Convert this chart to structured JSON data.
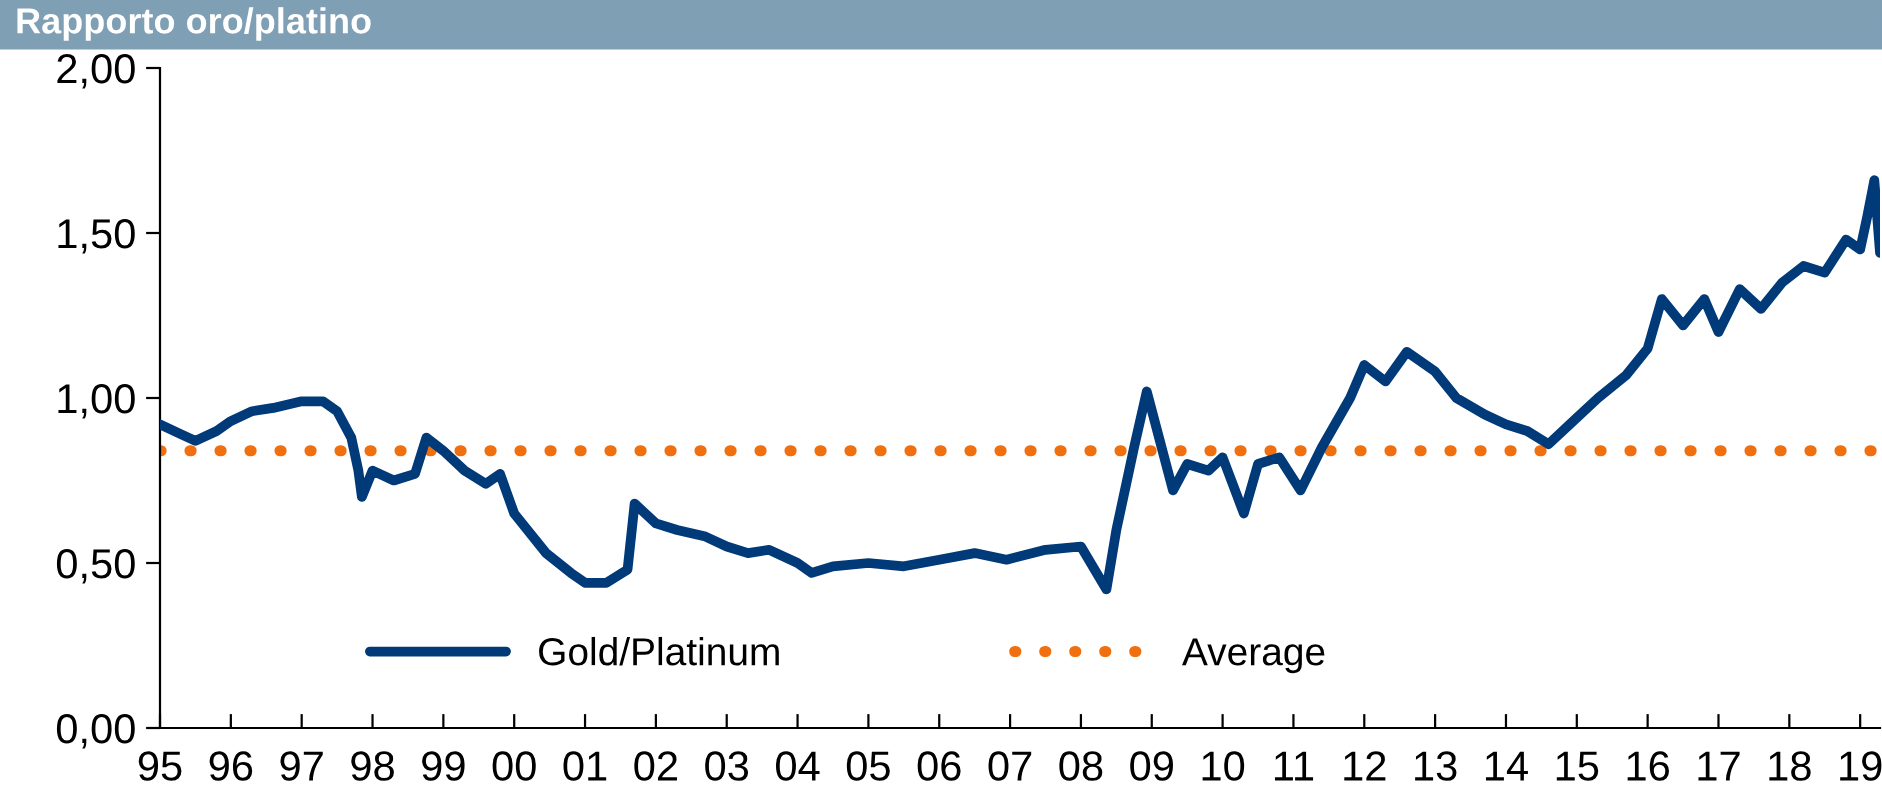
{
  "chart_data": {
    "type": "line",
    "title": "Rapporto oro/platino",
    "x": [
      1995.0,
      1995.3,
      1995.5,
      1995.8,
      1996.0,
      1996.3,
      1996.6,
      1997.0,
      1997.3,
      1997.5,
      1997.7,
      1997.8,
      1997.85,
      1998.0,
      1998.3,
      1998.6,
      1998.76,
      1999.0,
      1999.3,
      1999.6,
      1999.8,
      2000.0,
      2000.45,
      2000.8,
      2001.0,
      2001.3,
      2001.6,
      2001.7,
      2002.0,
      2002.3,
      2002.7,
      2003.0,
      2003.3,
      2003.6,
      2004.0,
      2004.2,
      2004.5,
      2005.0,
      2005.5,
      2006.0,
      2006.5,
      2006.95,
      2007.5,
      2008.0,
      2008.36,
      2008.5,
      2008.75,
      2008.93,
      2009.3,
      2009.5,
      2009.8,
      2010.0,
      2010.3,
      2010.5,
      2010.8,
      2011.1,
      2011.4,
      2011.8,
      2012.0,
      2012.3,
      2012.6,
      2013.0,
      2013.3,
      2013.7,
      2014.0,
      2014.3,
      2014.6,
      2014.9,
      2015.3,
      2015.7,
      2016.0,
      2016.2,
      2016.5,
      2016.8,
      2017.0,
      2017.3,
      2017.6,
      2017.9,
      2018.2,
      2018.5,
      2018.8,
      2019.0,
      2019.1,
      2019.2,
      2019.28
    ],
    "series": [
      {
        "name": "Gold/Platinum",
        "color": "#003a78",
        "values": [
          0.92,
          0.89,
          0.87,
          0.9,
          0.93,
          0.96,
          0.97,
          0.99,
          0.99,
          0.96,
          0.88,
          0.78,
          0.7,
          0.78,
          0.75,
          0.77,
          0.88,
          0.84,
          0.78,
          0.74,
          0.77,
          0.65,
          0.53,
          0.47,
          0.44,
          0.44,
          0.48,
          0.68,
          0.62,
          0.6,
          0.58,
          0.55,
          0.53,
          0.54,
          0.5,
          0.47,
          0.49,
          0.5,
          0.49,
          0.51,
          0.53,
          0.51,
          0.54,
          0.55,
          0.42,
          0.6,
          0.85,
          1.02,
          0.72,
          0.8,
          0.78,
          0.82,
          0.65,
          0.8,
          0.82,
          0.72,
          0.85,
          1.0,
          1.1,
          1.05,
          1.14,
          1.08,
          1.0,
          0.95,
          0.92,
          0.9,
          0.86,
          0.92,
          1.0,
          1.07,
          1.15,
          1.3,
          1.22,
          1.3,
          1.2,
          1.33,
          1.27,
          1.35,
          1.4,
          1.38,
          1.48,
          1.45,
          1.55,
          1.66,
          1.44
        ]
      }
    ],
    "ref_lines": [
      {
        "axis": "y",
        "value": 0.84,
        "label": "Average",
        "color": "#f07010",
        "line_style": "dotted"
      }
    ],
    "xlim": [
      1995,
      2019.28
    ],
    "xticks": [
      {
        "value": 1995,
        "label": "95"
      },
      {
        "value": 1996,
        "label": "96"
      },
      {
        "value": 1997,
        "label": "97"
      },
      {
        "value": 1998,
        "label": "98"
      },
      {
        "value": 1999,
        "label": "99"
      },
      {
        "value": 2000,
        "label": "00"
      },
      {
        "value": 2001,
        "label": "01"
      },
      {
        "value": 2002,
        "label": "02"
      },
      {
        "value": 2003,
        "label": "03"
      },
      {
        "value": 2004,
        "label": "04"
      },
      {
        "value": 2005,
        "label": "05"
      },
      {
        "value": 2006,
        "label": "06"
      },
      {
        "value": 2007,
        "label": "07"
      },
      {
        "value": 2008,
        "label": "08"
      },
      {
        "value": 2009,
        "label": "09"
      },
      {
        "value": 2010,
        "label": "10"
      },
      {
        "value": 2011,
        "label": "11"
      },
      {
        "value": 2012,
        "label": "12"
      },
      {
        "value": 2013,
        "label": "13"
      },
      {
        "value": 2014,
        "label": "14"
      },
      {
        "value": 2015,
        "label": "15"
      },
      {
        "value": 2016,
        "label": "16"
      },
      {
        "value": 2017,
        "label": "17"
      },
      {
        "value": 2018,
        "label": "18"
      },
      {
        "value": 2019,
        "label": "19"
      }
    ],
    "ylim": [
      0,
      2
    ],
    "yticks": [
      {
        "value": 0,
        "label": "0,00"
      },
      {
        "value": 0.5,
        "label": "0,50"
      },
      {
        "value": 1,
        "label": "1,00"
      },
      {
        "value": 1.5,
        "label": "1,50"
      },
      {
        "value": 2,
        "label": "2,00"
      }
    ],
    "grid": false,
    "legend": "bottom",
    "marker": "none",
    "line_style": "solid"
  }
}
